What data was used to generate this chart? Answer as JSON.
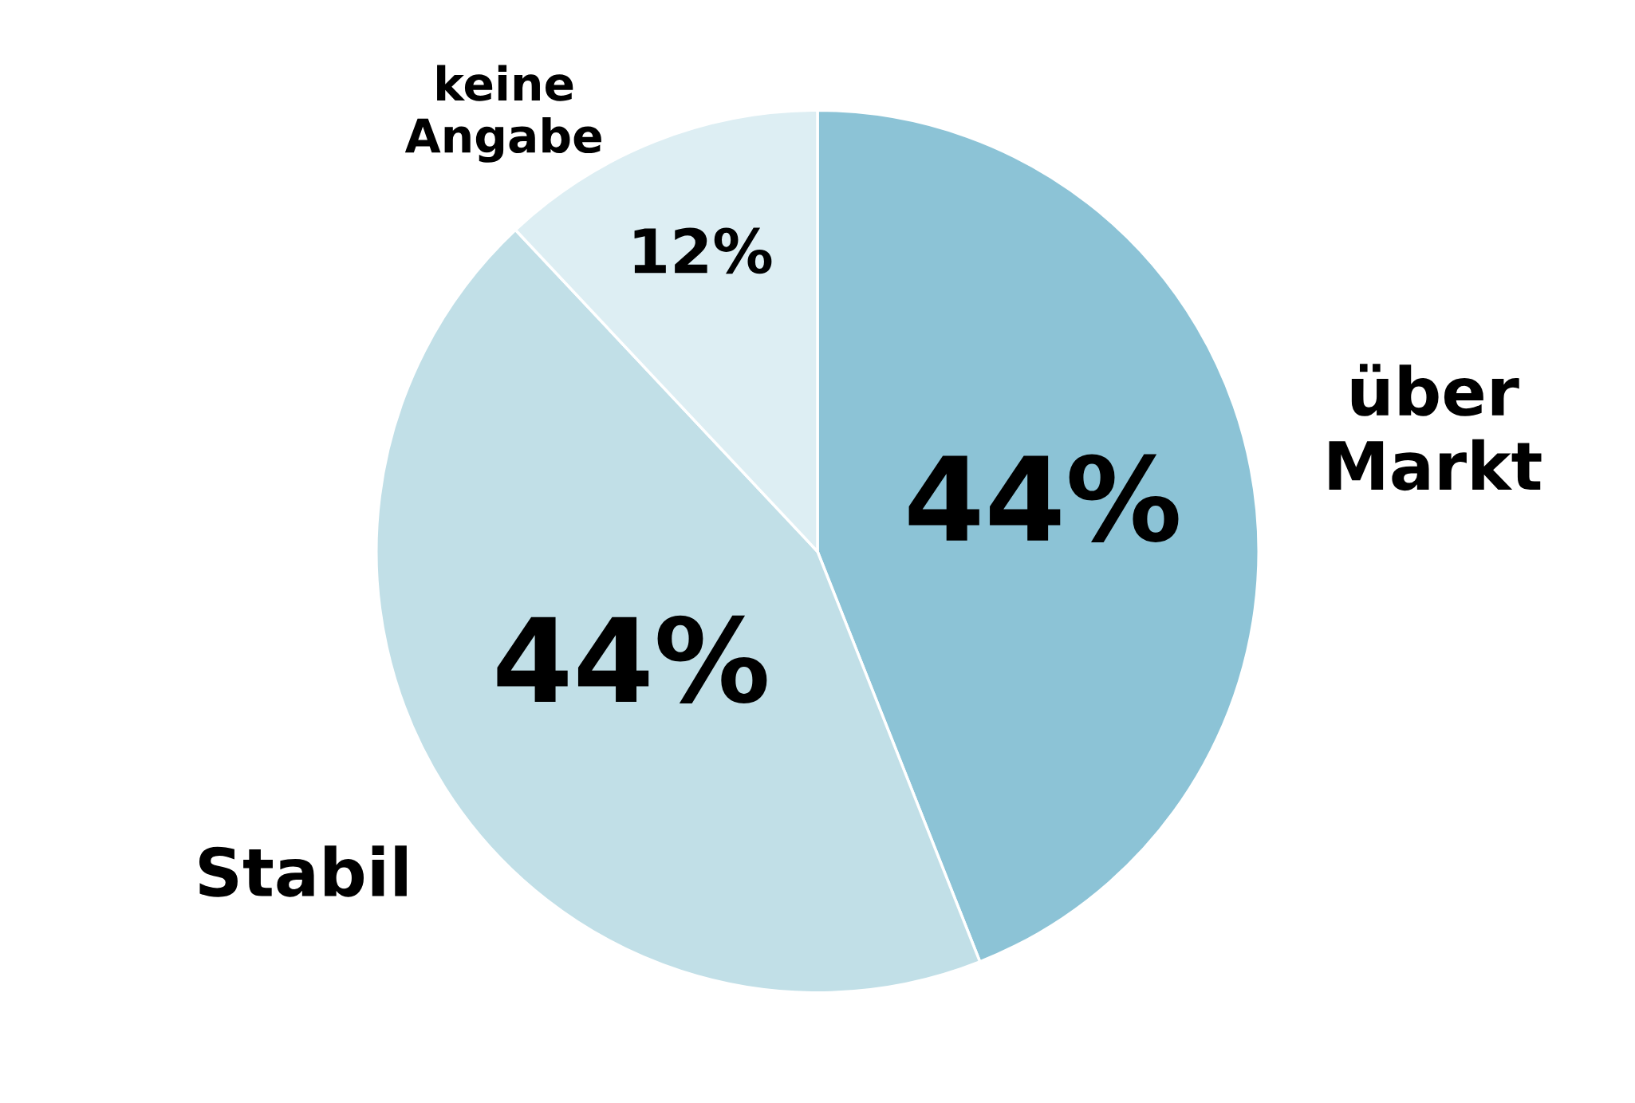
{
  "chart_data": {
    "type": "pie",
    "categories": [
      "über Markt",
      "Stabil",
      "keine Angabe"
    ],
    "values": [
      44,
      44,
      12
    ],
    "colors": [
      "#8cc3d6",
      "#c1dfe7",
      "#ddeef3"
    ],
    "value_labels": [
      "44%",
      "44%",
      "12%"
    ],
    "legend": false
  }
}
